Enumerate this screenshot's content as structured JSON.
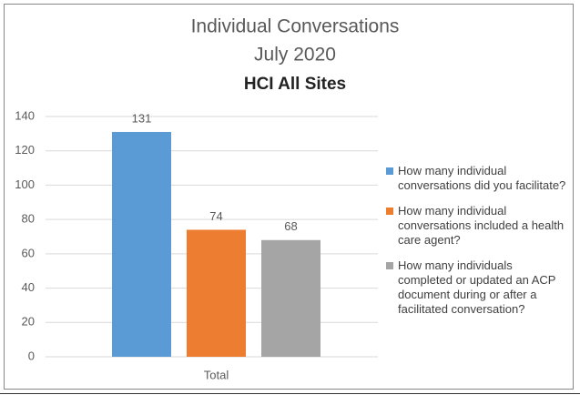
{
  "chart_data": {
    "type": "bar",
    "title": [
      "Individual Conversations",
      "July 2020"
    ],
    "subtitle": "HCI All Sites",
    "categories": [
      "Total"
    ],
    "series": [
      {
        "name": "How many individual conversations did you facilitate?",
        "color": "#5b9bd5",
        "values": [
          131
        ]
      },
      {
        "name": "How many individual conversations included a health care agent?",
        "color": "#ed7d31",
        "values": [
          74
        ]
      },
      {
        "name": "How many individuals completed or updated an ACP document during or after a facilitated conversation?",
        "color": "#a5a5a5",
        "values": [
          68
        ]
      }
    ],
    "ylim": [
      0,
      140
    ],
    "yticks": [
      0,
      20,
      40,
      60,
      80,
      100,
      120,
      140
    ],
    "grid": true,
    "legend": "right"
  }
}
